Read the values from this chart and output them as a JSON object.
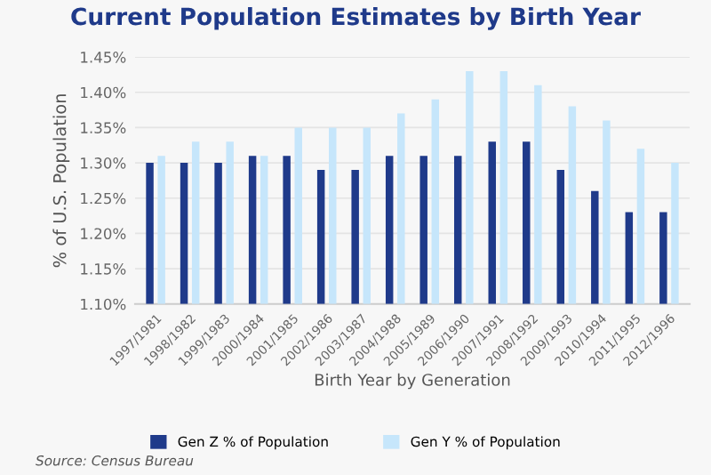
{
  "chart_data": {
    "type": "bar",
    "title": "Current Population Estimates by Birth Year",
    "xlabel": "Birth Year by Generation",
    "ylabel": "% of U.S. Population",
    "categories": [
      "1997/1981",
      "1998/1982",
      "1999/1983",
      "2000/1984",
      "2001/1985",
      "2002/1986",
      "2003/1987",
      "2004/1988",
      "2005/1989",
      "2006/1990",
      "2007/1991",
      "2008/1992",
      "2009/1993",
      "2010/1994",
      "2011/1995",
      "2012/1996"
    ],
    "series": [
      {
        "name": "Gen Z % of Population",
        "color": "#1f3a8a",
        "values": [
          1.3,
          1.3,
          1.3,
          1.31,
          1.31,
          1.29,
          1.29,
          1.31,
          1.31,
          1.31,
          1.33,
          1.33,
          1.29,
          1.26,
          1.23,
          1.23
        ]
      },
      {
        "name": "Gen Y % of Population",
        "color": "#c6e6fb",
        "values": [
          1.31,
          1.33,
          1.33,
          1.31,
          1.35,
          1.35,
          1.35,
          1.37,
          1.39,
          1.43,
          1.43,
          1.41,
          1.38,
          1.36,
          1.32,
          1.3
        ]
      }
    ],
    "ylim": [
      1.1,
      1.45
    ],
    "yticks": [
      {
        "value": 1.1,
        "label": "1.10%"
      },
      {
        "value": 1.15,
        "label": "1.15%"
      },
      {
        "value": 1.2,
        "label": "1.20%"
      },
      {
        "value": 1.25,
        "label": "1.25%"
      },
      {
        "value": 1.3,
        "label": "1.30%"
      },
      {
        "value": 1.35,
        "label": "1.35%"
      },
      {
        "value": 1.4,
        "label": "1.40%"
      },
      {
        "value": 1.45,
        "label": "1.45%"
      }
    ],
    "grid": "y",
    "legend": "bottom",
    "annotations": [
      "Source: Census Bureau"
    ]
  }
}
